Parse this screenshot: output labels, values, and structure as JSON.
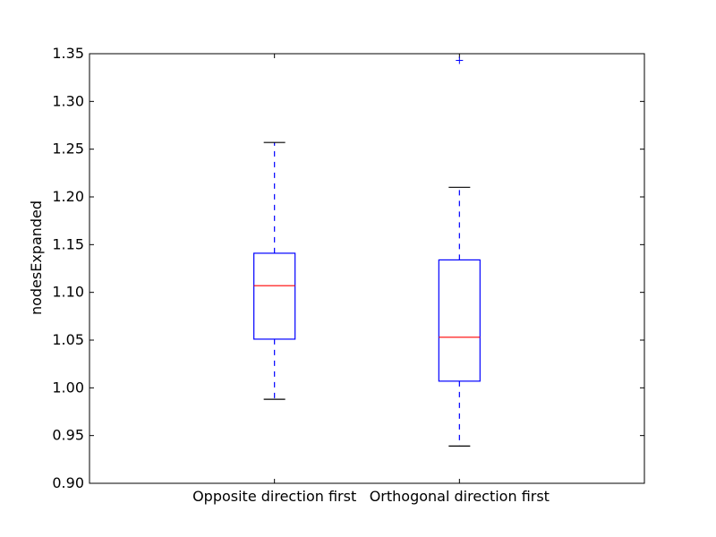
{
  "chart_data": {
    "type": "boxplot",
    "title": "",
    "xlabel": "",
    "ylabel": "nodesExpanded",
    "ylim": [
      0.9,
      1.35
    ],
    "yticks": [
      "0.90",
      "0.95",
      "1.00",
      "1.05",
      "1.10",
      "1.15",
      "1.20",
      "1.25",
      "1.30",
      "1.35"
    ],
    "grid": false,
    "categories": [
      "Opposite direction first",
      "Orthogonal direction first"
    ],
    "boxes": [
      {
        "category": "Opposite direction first",
        "whisker_low": 0.988,
        "q1": 1.051,
        "median": 1.107,
        "q3": 1.141,
        "whisker_high": 1.257,
        "outliers": []
      },
      {
        "category": "Orthogonal direction first",
        "whisker_low": 0.939,
        "q1": 1.007,
        "median": 1.053,
        "q3": 1.134,
        "whisker_high": 1.21,
        "outliers": [
          1.343
        ]
      }
    ],
    "colors": {
      "box": "#0000ff",
      "median": "#ff0000",
      "whisker": "#0000ff",
      "cap": "#000000",
      "outlier": "#0000ff",
      "axes": "#000000"
    }
  }
}
